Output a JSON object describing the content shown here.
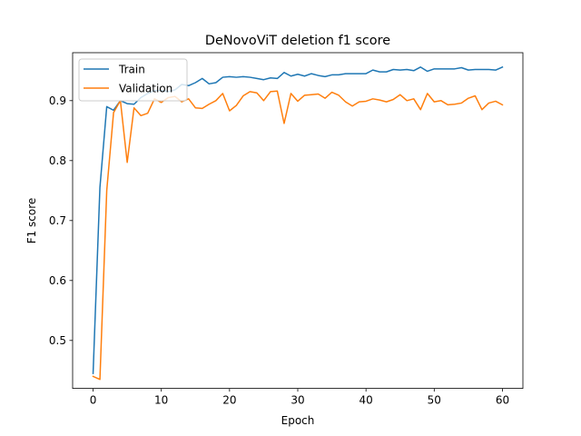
{
  "chart_data": {
    "type": "line",
    "title": "DeNovoViT deletion f1 score",
    "xlabel": "Epoch",
    "ylabel": "F1 score",
    "xlim": [
      -3,
      63
    ],
    "ylim": [
      0.42,
      0.98
    ],
    "xticks": [
      0,
      10,
      20,
      30,
      40,
      50,
      60
    ],
    "yticks": [
      0.5,
      0.6,
      0.7,
      0.8,
      0.9
    ],
    "ytick_labels": [
      "0.5",
      "0.6",
      "0.7",
      "0.8",
      "0.9"
    ],
    "legend_position": "top-left",
    "grid": false,
    "series": [
      {
        "name": "Train",
        "color": "#1f77b4",
        "x": [
          0,
          1,
          2,
          3,
          4,
          5,
          6,
          7,
          8,
          9,
          10,
          11,
          12,
          13,
          14,
          15,
          16,
          17,
          18,
          19,
          20,
          21,
          22,
          23,
          24,
          25,
          26,
          27,
          28,
          29,
          30,
          31,
          32,
          33,
          34,
          35,
          36,
          37,
          38,
          39,
          40,
          41,
          42,
          43,
          44,
          45,
          46,
          47,
          48,
          49,
          50,
          51,
          52,
          53,
          54,
          55,
          56,
          57,
          58,
          59,
          60
        ],
        "values": [
          0.445,
          0.755,
          0.89,
          0.884,
          0.9,
          0.895,
          0.894,
          0.905,
          0.912,
          0.917,
          0.917,
          0.915,
          0.918,
          0.927,
          0.925,
          0.93,
          0.937,
          0.928,
          0.93,
          0.939,
          0.94,
          0.939,
          0.94,
          0.939,
          0.937,
          0.935,
          0.938,
          0.937,
          0.947,
          0.941,
          0.944,
          0.941,
          0.945,
          0.942,
          0.94,
          0.943,
          0.943,
          0.945,
          0.945,
          0.945,
          0.945,
          0.951,
          0.948,
          0.948,
          0.952,
          0.951,
          0.952,
          0.95,
          0.956,
          0.949,
          0.953,
          0.953,
          0.953,
          0.953,
          0.955,
          0.951,
          0.952,
          0.952,
          0.952,
          0.951,
          0.956
        ]
      },
      {
        "name": "Validation",
        "color": "#ff7f0e",
        "x": [
          0,
          1,
          2,
          3,
          4,
          5,
          6,
          7,
          8,
          9,
          10,
          11,
          12,
          13,
          14,
          15,
          16,
          17,
          18,
          19,
          20,
          21,
          22,
          23,
          24,
          25,
          26,
          27,
          28,
          29,
          30,
          31,
          32,
          33,
          34,
          35,
          36,
          37,
          38,
          39,
          40,
          41,
          42,
          43,
          44,
          45,
          46,
          47,
          48,
          49,
          50,
          51,
          52,
          53,
          54,
          55,
          56,
          57,
          58,
          59,
          60
        ],
        "values": [
          0.44,
          0.435,
          0.75,
          0.88,
          0.9,
          0.797,
          0.888,
          0.875,
          0.879,
          0.903,
          0.897,
          0.905,
          0.907,
          0.898,
          0.903,
          0.888,
          0.887,
          0.894,
          0.9,
          0.912,
          0.883,
          0.892,
          0.908,
          0.915,
          0.913,
          0.9,
          0.915,
          0.916,
          0.862,
          0.912,
          0.899,
          0.909,
          0.91,
          0.911,
          0.904,
          0.914,
          0.909,
          0.898,
          0.891,
          0.898,
          0.899,
          0.903,
          0.901,
          0.898,
          0.902,
          0.91,
          0.9,
          0.903,
          0.885,
          0.912,
          0.898,
          0.9,
          0.893,
          0.894,
          0.896,
          0.904,
          0.908,
          0.885,
          0.896,
          0.899,
          0.893
        ]
      }
    ]
  }
}
